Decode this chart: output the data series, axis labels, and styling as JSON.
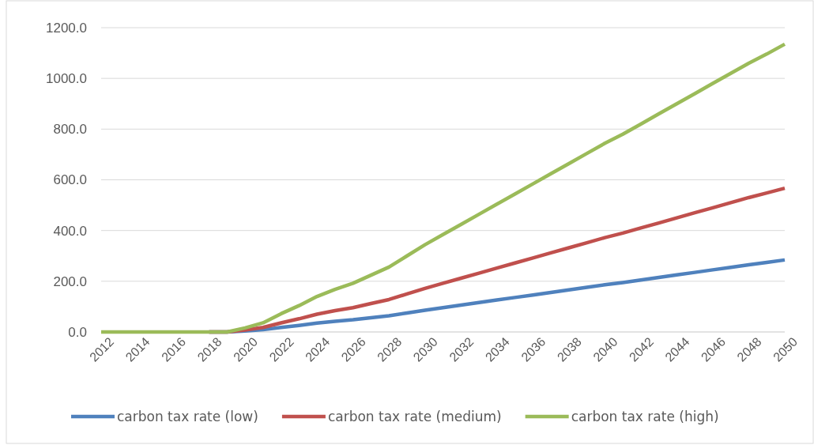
{
  "chart_data": {
    "type": "line",
    "x": [
      2012,
      2013,
      2014,
      2015,
      2016,
      2017,
      2018,
      2019,
      2020,
      2021,
      2022,
      2023,
      2024,
      2025,
      2026,
      2027,
      2028,
      2029,
      2030,
      2031,
      2032,
      2033,
      2034,
      2035,
      2036,
      2037,
      2038,
      2039,
      2040,
      2041,
      2042,
      2043,
      2044,
      2045,
      2046,
      2047,
      2048,
      2049,
      2050
    ],
    "series": [
      {
        "name": "carbon tax rate (low)",
        "color": "#4f81bd",
        "values": [
          null,
          null,
          null,
          null,
          null,
          null,
          0,
          0,
          4,
          9,
          18,
          26,
          35,
          42,
          48,
          56,
          64,
          75,
          86,
          96,
          106,
          116,
          126,
          136,
          146,
          156,
          166,
          176,
          186,
          195,
          205,
          215,
          225,
          235,
          245,
          255,
          265,
          274,
          284
        ]
      },
      {
        "name": "carbon tax rate (medium)",
        "color": "#c0504d",
        "values": [
          null,
          null,
          null,
          null,
          null,
          null,
          0,
          0,
          8,
          18,
          36,
          52,
          70,
          84,
          96,
          112,
          128,
          150,
          172,
          192,
          212,
          232,
          252,
          272,
          292,
          312,
          332,
          352,
          372,
          390,
          410,
          430,
          450,
          470,
          490,
          510,
          530,
          548,
          567
        ]
      },
      {
        "name": "carbon tax rate (high)",
        "color": "#9bbb59",
        "values": [
          0,
          0,
          0,
          0,
          0,
          0,
          0,
          0,
          16,
          36,
          72,
          104,
          140,
          168,
          192,
          224,
          256,
          300,
          344,
          384,
          424,
          464,
          504,
          544,
          584,
          624,
          664,
          704,
          744,
          780,
          820,
          860,
          900,
          940,
          980,
          1020,
          1060,
          1096,
          1135
        ]
      }
    ],
    "xlim": [
      2012,
      2050
    ],
    "xticks": [
      2012,
      2014,
      2016,
      2018,
      2020,
      2022,
      2024,
      2026,
      2028,
      2030,
      2032,
      2034,
      2036,
      2038,
      2040,
      2042,
      2044,
      2046,
      2048,
      2050
    ],
    "ylim": [
      0,
      1200
    ],
    "yticks": [
      {
        "value": 0,
        "label": "0.0"
      },
      {
        "value": 200,
        "label": "200.0"
      },
      {
        "value": 400,
        "label": "400.0"
      },
      {
        "value": 600,
        "label": "600.0"
      },
      {
        "value": 800,
        "label": "800.0"
      },
      {
        "value": 1000,
        "label": "1000.0"
      },
      {
        "value": 1200,
        "label": "1200.0"
      }
    ],
    "grid": "y",
    "legend": "bottom",
    "marker": "none",
    "line_style": "solid"
  }
}
